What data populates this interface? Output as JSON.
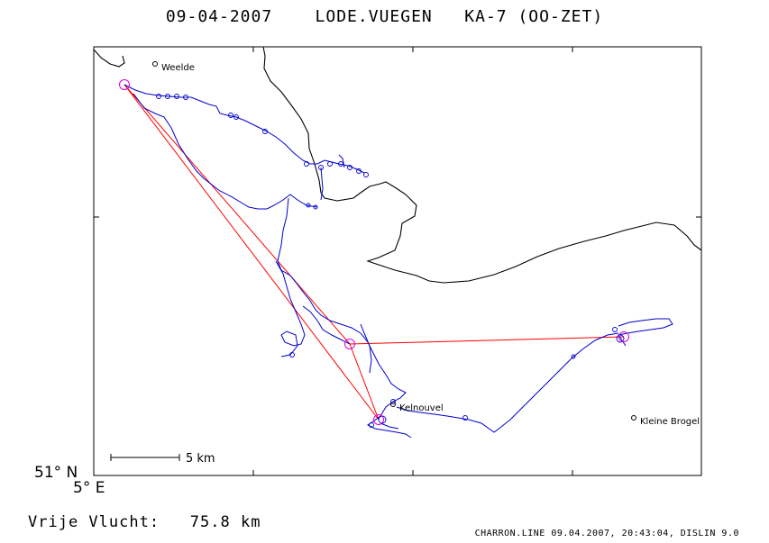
{
  "title": {
    "date": "09-04-2007",
    "site": "LODE.VUEGEN",
    "glider": "KA-7 (OO-ZET)"
  },
  "map": {
    "places": [
      "Weelde",
      "Kelnouvel",
      "Kleine Brogel"
    ],
    "scale_label": "5 km",
    "lat_label": "51° N",
    "lon_label": "5° E",
    "colors": {
      "track": "#0000cc",
      "task": "#ff0000",
      "turnpoint": "#dd00dd",
      "border": "#000000"
    }
  },
  "footer": {
    "label": "Vrije Vlucht:",
    "distance": "75.8 km",
    "credit": "CHARRON.LINE 09.04.2007, 20:43:04, DISLIN 9.0"
  }
}
